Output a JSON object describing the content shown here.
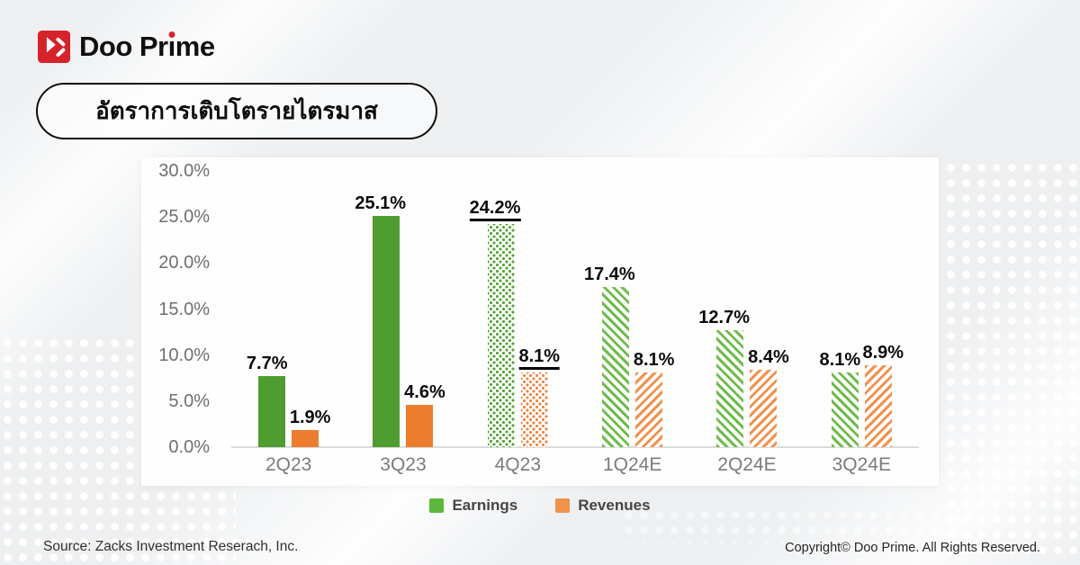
{
  "page": {
    "logo": {
      "brand_full": "Doo Prime",
      "part1": "Doo Pr",
      "i_char": "ı",
      "part2": "me"
    },
    "title_badge": "อัตราการเติบโตรายไตรมาส",
    "footer": {
      "source": "Source: Zacks Investment Reserach, Inc.",
      "copyright": "Copyright© Doo Prime. All Rights Reserved."
    },
    "colors": {
      "brand_red": "#d6232a",
      "earnings_green": "#4f9c31",
      "revenues_orange": "#ed7d2e",
      "background_gray": "#edeff1"
    }
  },
  "chart_data": {
    "type": "bar",
    "title": "อัตราการเติบโตรายไตรมาส",
    "xlabel": "",
    "ylabel": "",
    "ylim": [
      0,
      30
    ],
    "grid": false,
    "categories": [
      "2Q23",
      "3Q23",
      "4Q23",
      "1Q24E",
      "2Q24E",
      "3Q24E"
    ],
    "series": [
      {
        "name": "Earnings",
        "color": "#4f9c31",
        "values": [
          7.7,
          25.1,
          24.2,
          17.4,
          12.7,
          8.1
        ],
        "labels": [
          "7.7%",
          "25.1%",
          "24.2%",
          "17.4%",
          "12.7%",
          "8.1%"
        ],
        "styles": [
          "solid",
          "solid",
          "dots",
          "stripes",
          "stripes",
          "stripes"
        ]
      },
      {
        "name": "Revenues",
        "color": "#ed7d2e",
        "values": [
          1.9,
          4.6,
          8.1,
          8.1,
          8.4,
          8.9
        ],
        "labels": [
          "1.9%",
          "4.6%",
          "8.1%",
          "8.1%",
          "8.4%",
          "8.9%"
        ],
        "styles": [
          "solid",
          "solid",
          "dots",
          "stripes",
          "stripes",
          "stripes"
        ]
      }
    ],
    "underlined_categories": [
      "4Q23"
    ],
    "yticks": [
      {
        "label": "30.0%",
        "value": 30
      },
      {
        "label": "25.0%",
        "value": 25
      },
      {
        "label": "20.0%",
        "value": 20
      },
      {
        "label": "15.0%",
        "value": 15
      },
      {
        "label": "10.0%",
        "value": 10
      },
      {
        "label": "5.0%",
        "value": 5
      },
      {
        "label": "0.0%",
        "value": 0
      }
    ],
    "legend": {
      "position": "bottom",
      "items": [
        {
          "label": "Earnings",
          "swatch": "#5cb83c"
        },
        {
          "label": "Revenues",
          "swatch": "#f0924a"
        }
      ]
    }
  }
}
